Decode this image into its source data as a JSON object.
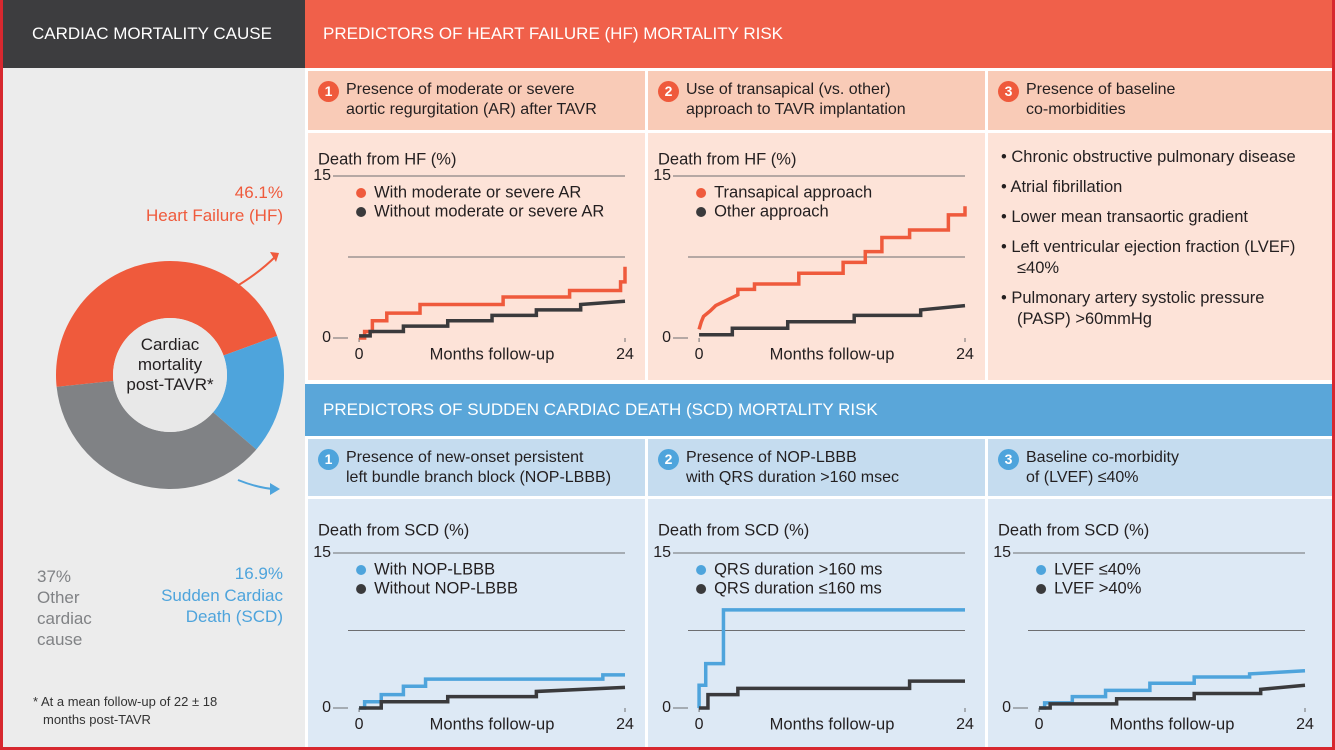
{
  "header": {
    "left": "CARDIAC MORTALITY CAUSE",
    "hf": "PREDICTORS OF HEART FAILURE (HF) MORTALITY RISK",
    "scd": "PREDICTORS OF SUDDEN CARDIAC DEATH (SCD) MORTALITY RISK"
  },
  "hf_panels": [
    {
      "number": 1,
      "title": [
        "Presence of moderate or severe",
        "aortic regurgitation (AR) after TAVR"
      ]
    },
    {
      "number": 2,
      "title": [
        "Use of transapical (vs. other)",
        "approach to TAVR implantation"
      ]
    },
    {
      "number": 3,
      "title": [
        "Presence of baseline",
        "co-morbidities"
      ],
      "bullets": [
        "Chronic obstructive pulmonary disease",
        "Atrial fibrillation",
        "Lower mean transaortic gradient",
        "Left ventricular ejection fraction (LVEF) ≤40%",
        "Pulmonary artery systolic pressure (PASP) >60mmHg"
      ]
    }
  ],
  "scd_panels": [
    {
      "number": 1,
      "title": [
        "Presence of new-onset persistent",
        "left bundle branch block (NOP-LBBB)"
      ]
    },
    {
      "number": 2,
      "title": [
        "Presence of NOP-LBBB",
        "with QRS duration >160 msec"
      ]
    },
    {
      "number": 3,
      "title": [
        "Baseline co-morbidity",
        "of (LVEF) ≤40%"
      ]
    }
  ],
  "footnote": "* At a mean follow-up of 22 ± 18 months post-TAVR",
  "chart_data": [
    {
      "type": "pie",
      "center_label": "Cardiac mortality post-TAVR*",
      "categories": [
        "Heart Failure (HF)",
        "Sudden Cardiac Death (SCD)",
        "Other cardiac cause"
      ],
      "values": [
        46.1,
        16.9,
        37
      ],
      "value_labels": [
        "46.1%",
        "16.9%",
        "37%"
      ],
      "colors": [
        "#ef5a3c",
        "#4ea4dc",
        "#808285"
      ]
    },
    {
      "type": "line",
      "ylabel": "Death from HF (%)",
      "xlabel": "Months follow-up",
      "xlim": [
        -1,
        24
      ],
      "ylim": [
        0,
        15
      ],
      "xticks": [
        0,
        24
      ],
      "yticks": [
        0,
        15
      ],
      "gridlines": [
        7.5
      ],
      "legend": "upper left",
      "series": [
        {
          "name": "With moderate or severe AR",
          "color": "#ef5a3c",
          "x": [
            0,
            0.5,
            0.5,
            1.2,
            1.2,
            2.5,
            2.5,
            5.5,
            5.5,
            13,
            13,
            19,
            19,
            23.6,
            23.6,
            24,
            24
          ],
          "values": [
            0,
            0,
            0.6,
            0.6,
            1.6,
            1.6,
            2.3,
            2.3,
            3.1,
            3.1,
            3.8,
            3.8,
            4.4,
            4.4,
            5.2,
            5.2,
            6.6
          ]
        },
        {
          "name": "Without moderate or severe AR",
          "color": "#3a3a3c",
          "x": [
            0,
            1,
            1,
            4,
            4,
            8,
            8,
            12,
            12,
            16,
            16,
            20,
            20,
            24
          ],
          "values": [
            0.2,
            0.2,
            0.6,
            0.6,
            1.1,
            1.1,
            1.6,
            1.6,
            2.1,
            2.1,
            2.6,
            2.6,
            3.1,
            3.4
          ]
        }
      ]
    },
    {
      "type": "line",
      "ylabel": "Death from HF (%)",
      "xlabel": "Months follow-up",
      "xlim": [
        -1,
        24
      ],
      "ylim": [
        0,
        15
      ],
      "xticks": [
        0,
        24
      ],
      "yticks": [
        0,
        15
      ],
      "gridlines": [
        7.5
      ],
      "legend": "upper left",
      "series": [
        {
          "name": "Transapical approach",
          "color": "#ef5a3c",
          "x": [
            0,
            0.2,
            0.4,
            1,
            1.5,
            2.5,
            3.5,
            3.5,
            5,
            5,
            9,
            9,
            13,
            13,
            15,
            15,
            16.5,
            16.5,
            19,
            19,
            22.5,
            22.5,
            24,
            24
          ],
          "values": [
            0.8,
            1.5,
            2,
            2.5,
            3,
            3.5,
            4,
            4.5,
            4.5,
            5,
            5,
            6,
            6,
            7,
            7,
            8,
            8,
            9.3,
            9.3,
            10,
            10,
            11.4,
            11.4,
            12.2
          ]
        },
        {
          "name": "Other approach",
          "color": "#3a3a3c",
          "x": [
            0,
            3,
            3,
            8,
            8,
            14,
            14,
            20,
            20,
            24
          ],
          "values": [
            0.3,
            0.3,
            0.9,
            0.9,
            1.5,
            1.5,
            2.1,
            2.1,
            2.6,
            3.0
          ]
        }
      ]
    },
    {
      "type": "line",
      "ylabel": "Death from SCD (%)",
      "xlabel": "Months follow-up",
      "xlim": [
        -1,
        24
      ],
      "ylim": [
        0,
        15
      ],
      "xticks": [
        0,
        24
      ],
      "yticks": [
        0,
        15
      ],
      "gridlines": [
        7.5
      ],
      "legend": "upper left",
      "series": [
        {
          "name": "With NOP-LBBB",
          "color": "#4ea4dc",
          "x": [
            0,
            0.5,
            0.5,
            2,
            2,
            4,
            4,
            6,
            6,
            22,
            22,
            24
          ],
          "values": [
            0,
            0,
            0.6,
            0.6,
            1.3,
            1.3,
            2.1,
            2.1,
            2.8,
            2.8,
            3.2,
            3.2
          ]
        },
        {
          "name": "Without NOP-LBBB",
          "color": "#3a3a3c",
          "x": [
            0,
            2,
            2,
            8,
            8,
            16,
            16,
            24
          ],
          "values": [
            0,
            0,
            0.6,
            0.6,
            1.1,
            1.1,
            1.6,
            2.0
          ]
        }
      ]
    },
    {
      "type": "line",
      "ylabel": "Death from SCD (%)",
      "xlabel": "Months follow-up",
      "xlim": [
        -1,
        24
      ],
      "ylim": [
        0,
        15
      ],
      "xticks": [
        0,
        24
      ],
      "yticks": [
        0,
        15
      ],
      "gridlines": [
        7.5
      ],
      "legend": "upper left",
      "series": [
        {
          "name": "QRS duration >160 ms",
          "color": "#4ea4dc",
          "x": [
            0,
            0,
            0.6,
            0.6,
            2.2,
            2.2,
            24
          ],
          "values": [
            0,
            2.2,
            2.2,
            4.3,
            4.3,
            9.5,
            9.5
          ]
        },
        {
          "name": "QRS duration ≤160 ms",
          "color": "#3a3a3c",
          "x": [
            0,
            0.8,
            0.8,
            3.5,
            3.5,
            19,
            19,
            24
          ],
          "values": [
            0,
            0,
            1.3,
            1.3,
            1.9,
            1.9,
            2.6,
            2.6
          ]
        }
      ]
    },
    {
      "type": "line",
      "ylabel": "Death from SCD (%)",
      "xlabel": "Months follow-up",
      "xlim": [
        -1,
        24
      ],
      "ylim": [
        0,
        15
      ],
      "xticks": [
        0,
        24
      ],
      "yticks": [
        0,
        15
      ],
      "gridlines": [
        7.5
      ],
      "legend": "upper left",
      "series": [
        {
          "name": "LVEF ≤40%",
          "color": "#4ea4dc",
          "x": [
            0,
            0.5,
            0.5,
            3,
            3,
            6,
            6,
            10,
            10,
            14,
            14,
            19,
            19,
            24
          ],
          "values": [
            0,
            0,
            0.5,
            0.5,
            1.1,
            1.1,
            1.7,
            1.7,
            2.4,
            2.4,
            3.0,
            3.0,
            3.3,
            3.6
          ]
        },
        {
          "name": "LVEF >40%",
          "color": "#3a3a3c",
          "x": [
            0,
            1,
            1,
            7,
            7,
            14,
            14,
            20,
            20,
            24
          ],
          "values": [
            0,
            0,
            0.4,
            0.4,
            0.9,
            0.9,
            1.4,
            1.4,
            1.8,
            2.2
          ]
        }
      ]
    }
  ]
}
